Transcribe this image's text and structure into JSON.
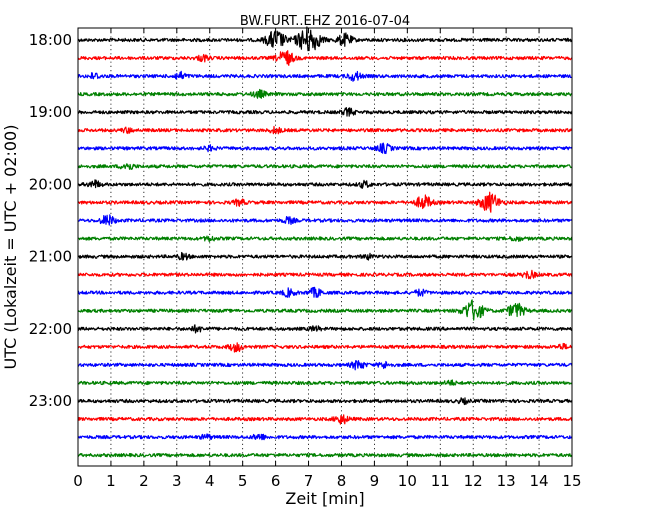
{
  "chart_data": {
    "type": "line",
    "title": "BW.FURT..EHZ 2016-07-04",
    "xlabel": "Zeit  [min]",
    "ylabel": "UTC (Lokalzeit = UTC + 02:00)",
    "xlim": [
      0,
      15
    ],
    "x_ticks": [
      "0",
      "1",
      "2",
      "3",
      "4",
      "5",
      "6",
      "7",
      "8",
      "9",
      "10",
      "11",
      "12",
      "13",
      "14",
      "15"
    ],
    "y_tick_labels": [
      "18:00",
      "19:00",
      "20:00",
      "21:00",
      "22:00",
      "23:00"
    ],
    "grid": "vertical dotted lines at each minute",
    "trace_colors": [
      "#000000",
      "#ff0000",
      "#0000ff",
      "#008000"
    ],
    "series": [
      {
        "start": "18:00",
        "events": [
          {
            "t": 6.0,
            "a": 1.3
          },
          {
            "t": 7.0,
            "a": 1.8
          },
          {
            "t": 8.1,
            "a": 0.8
          }
        ]
      },
      {
        "start": "18:15",
        "events": [
          {
            "t": 6.3,
            "a": 1.0
          },
          {
            "t": 3.8,
            "a": 0.4
          }
        ]
      },
      {
        "start": "18:30",
        "events": [
          {
            "t": 3.1,
            "a": 0.5
          },
          {
            "t": 8.4,
            "a": 0.6
          },
          {
            "t": 0.5,
            "a": 0.4
          }
        ]
      },
      {
        "start": "18:45",
        "events": [
          {
            "t": 5.5,
            "a": 0.5
          }
        ]
      },
      {
        "start": "19:00",
        "events": [
          {
            "t": 8.2,
            "a": 0.5
          }
        ]
      },
      {
        "start": "19:15",
        "events": [
          {
            "t": 6.0,
            "a": 0.4
          },
          {
            "t": 1.5,
            "a": 0.3
          }
        ]
      },
      {
        "start": "19:30",
        "events": [
          {
            "t": 9.3,
            "a": 0.6
          },
          {
            "t": 4.0,
            "a": 0.3
          }
        ]
      },
      {
        "start": "19:45",
        "events": [
          {
            "t": 1.5,
            "a": 0.5
          }
        ]
      },
      {
        "start": "20:00",
        "events": [
          {
            "t": 0.5,
            "a": 0.5
          },
          {
            "t": 8.7,
            "a": 0.4
          }
        ]
      },
      {
        "start": "20:15",
        "events": [
          {
            "t": 10.5,
            "a": 0.9
          },
          {
            "t": 12.5,
            "a": 1.3
          },
          {
            "t": 4.9,
            "a": 0.4
          }
        ]
      },
      {
        "start": "20:30",
        "events": [
          {
            "t": 0.9,
            "a": 0.7
          },
          {
            "t": 6.4,
            "a": 0.4
          }
        ]
      },
      {
        "start": "20:45",
        "events": [
          {
            "t": 4.0,
            "a": 0.3
          },
          {
            "t": 13.3,
            "a": 0.3
          }
        ]
      },
      {
        "start": "21:00",
        "events": [
          {
            "t": 3.2,
            "a": 0.4
          },
          {
            "t": 8.8,
            "a": 0.3
          }
        ]
      },
      {
        "start": "21:15",
        "events": [
          {
            "t": 13.7,
            "a": 0.5
          }
        ]
      },
      {
        "start": "21:30",
        "events": [
          {
            "t": 6.4,
            "a": 0.5
          },
          {
            "t": 7.2,
            "a": 0.6
          },
          {
            "t": 10.4,
            "a": 0.4
          }
        ]
      },
      {
        "start": "21:45",
        "events": [
          {
            "t": 12.0,
            "a": 1.4
          },
          {
            "t": 13.3,
            "a": 1.0
          }
        ]
      },
      {
        "start": "22:00",
        "events": [
          {
            "t": 3.6,
            "a": 0.4
          },
          {
            "t": 7.2,
            "a": 0.3
          }
        ]
      },
      {
        "start": "22:15",
        "events": [
          {
            "t": 4.8,
            "a": 0.6
          },
          {
            "t": 14.7,
            "a": 0.3
          }
        ]
      },
      {
        "start": "22:30",
        "events": [
          {
            "t": 8.5,
            "a": 0.6
          },
          {
            "t": 9.3,
            "a": 0.4
          }
        ]
      },
      {
        "start": "22:45",
        "events": [
          {
            "t": 11.3,
            "a": 0.3
          }
        ]
      },
      {
        "start": "23:00",
        "events": [
          {
            "t": 11.7,
            "a": 0.3
          }
        ]
      },
      {
        "start": "23:15",
        "events": [
          {
            "t": 8.0,
            "a": 0.6
          }
        ]
      },
      {
        "start": "23:30",
        "events": [
          {
            "t": 5.5,
            "a": 0.4
          },
          {
            "t": 3.9,
            "a": 0.3
          }
        ]
      },
      {
        "start": "23:45",
        "events": []
      }
    ]
  }
}
